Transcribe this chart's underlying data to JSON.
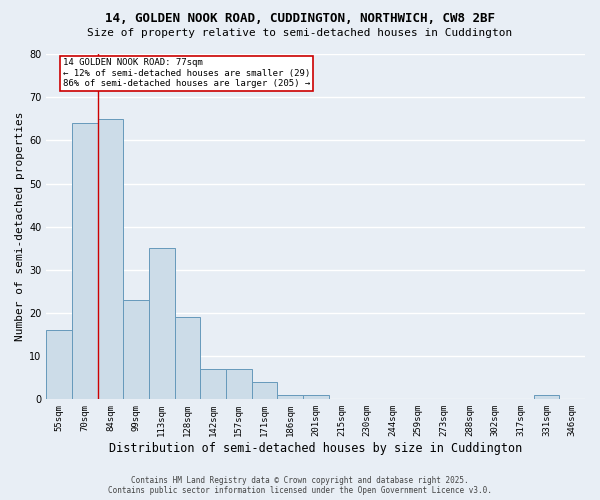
{
  "title1": "14, GOLDEN NOOK ROAD, CUDDINGTON, NORTHWICH, CW8 2BF",
  "title2": "Size of property relative to semi-detached houses in Cuddington",
  "xlabel": "Distribution of semi-detached houses by size in Cuddington",
  "ylabel": "Number of semi-detached properties",
  "categories": [
    "55sqm",
    "70sqm",
    "84sqm",
    "99sqm",
    "113sqm",
    "128sqm",
    "142sqm",
    "157sqm",
    "171sqm",
    "186sqm",
    "201sqm",
    "215sqm",
    "230sqm",
    "244sqm",
    "259sqm",
    "273sqm",
    "288sqm",
    "302sqm",
    "317sqm",
    "331sqm",
    "346sqm"
  ],
  "values": [
    16,
    64,
    65,
    23,
    35,
    19,
    7,
    7,
    4,
    1,
    1,
    0,
    0,
    0,
    0,
    0,
    0,
    0,
    0,
    1,
    0
  ],
  "bar_color": "#ccdce8",
  "bar_edge_color": "#6699bb",
  "red_line_x": 1.5,
  "annotation_text": "14 GOLDEN NOOK ROAD: 77sqm\n← 12% of semi-detached houses are smaller (29)\n86% of semi-detached houses are larger (205) →",
  "annotation_box_color": "white",
  "annotation_box_edge": "#cc0000",
  "red_line_color": "#cc0000",
  "ylim": [
    0,
    80
  ],
  "yticks": [
    0,
    10,
    20,
    30,
    40,
    50,
    60,
    70,
    80
  ],
  "footer1": "Contains HM Land Registry data © Crown copyright and database right 2025.",
  "footer2": "Contains public sector information licensed under the Open Government Licence v3.0.",
  "bg_color": "#e8eef5",
  "plot_bg_color": "#e8eef5",
  "grid_color": "#ffffff",
  "title_fontsize": 9,
  "subtitle_fontsize": 8,
  "axis_label_fontsize": 8,
  "tick_fontsize": 6.5,
  "annotation_fontsize": 6.5,
  "footer_fontsize": 5.5
}
